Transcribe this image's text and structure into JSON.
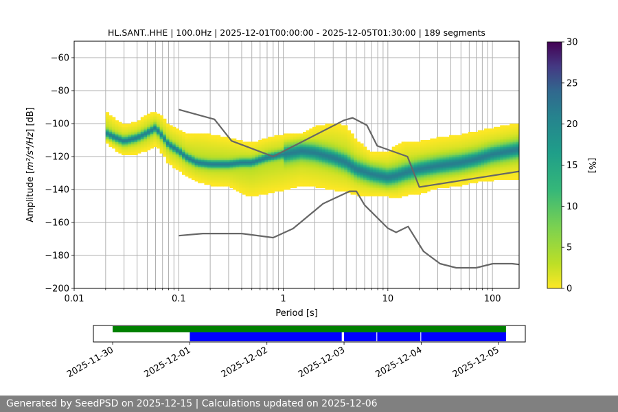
{
  "chart_data": {
    "type": "heatmap",
    "title": "HL.SANT..HHE | 100.0Hz | 2025-12-01T00:00:00 - 2025-12-05T01:30:00 | 189 segments",
    "xlabel": "Period [s]",
    "ylabel_prefix": "Amplitude [",
    "ylabel_math": "m²/s⁴/Hz",
    "ylabel_suffix": "] [dB]",
    "xscale": "log",
    "xlim": [
      0.01,
      180
    ],
    "ylim": [
      -200,
      -50
    ],
    "xticks": [
      {
        "value": 0.01,
        "label": "0.01"
      },
      {
        "value": 0.1,
        "label": "0.1"
      },
      {
        "value": 1,
        "label": "1"
      },
      {
        "value": 10,
        "label": "10"
      },
      {
        "value": 100,
        "label": "100"
      }
    ],
    "yticks": [
      {
        "value": -60,
        "label": "−60"
      },
      {
        "value": -80,
        "label": "−80"
      },
      {
        "value": -100,
        "label": "−100"
      },
      {
        "value": -120,
        "label": "−120"
      },
      {
        "value": -140,
        "label": "−140"
      },
      {
        "value": -160,
        "label": "−160"
      },
      {
        "value": -180,
        "label": "−180"
      },
      {
        "value": -200,
        "label": "−200"
      }
    ],
    "grid": true,
    "colorbar": {
      "label": "[%]",
      "min": 0,
      "max": 30,
      "ticks": [
        {
          "value": 0,
          "label": "0"
        },
        {
          "value": 5,
          "label": "5"
        },
        {
          "value": 10,
          "label": "10"
        },
        {
          "value": 15,
          "label": "15"
        },
        {
          "value": 20,
          "label": "20"
        },
        {
          "value": 25,
          "label": "25"
        },
        {
          "value": 30,
          "label": "30"
        }
      ],
      "colormap": "viridis_r"
    },
    "psd_band": {
      "period": [
        0.02,
        0.025,
        0.03,
        0.04,
        0.05,
        0.06,
        0.07,
        0.08,
        0.1,
        0.12,
        0.15,
        0.2,
        0.3,
        0.4,
        0.5,
        0.7,
        1,
        1.5,
        2,
        3,
        4,
        5,
        7,
        10,
        12,
        15,
        20,
        30,
        50,
        70,
        100,
        180
      ],
      "mode": [
        -106,
        -109,
        -111,
        -109,
        -106,
        -103,
        -108,
        -113,
        -117,
        -121,
        -124,
        -125,
        -125,
        -124,
        -124,
        -121,
        -119,
        -117,
        -118,
        -121,
        -124,
        -128,
        -131,
        -133,
        -132,
        -130,
        -128,
        -126,
        -124,
        -122,
        -119,
        -116
      ],
      "upper": [
        -94,
        -99,
        -102,
        -100,
        -96,
        -94,
        -97,
        -102,
        -105,
        -108,
        -107,
        -108,
        -110,
        -112,
        -113,
        -110,
        -108,
        -107,
        -103,
        -101,
        -103,
        -111,
        -119,
        -118,
        -115,
        -112,
        -112,
        -110,
        -108,
        -106,
        -104,
        -101
      ],
      "lower": [
        -111,
        -116,
        -119,
        -118,
        -116,
        -113,
        -118,
        -124,
        -128,
        -132,
        -135,
        -137,
        -138,
        -142,
        -144,
        -142,
        -140,
        -137,
        -138,
        -140,
        -141,
        -143,
        -144,
        -144,
        -145,
        -143,
        -142,
        -139,
        -137,
        -135,
        -134,
        -133
      ]
    },
    "high_noise_model": {
      "period": [
        0.1,
        0.22,
        0.32,
        0.8,
        3.8,
        4.6,
        6.3,
        7.9,
        15.4,
        20,
        180
      ],
      "db": [
        -91.5,
        -97.4,
        -110.5,
        -120,
        -98,
        -96.5,
        -101,
        -113.5,
        -120,
        -138.5,
        -129
      ]
    },
    "low_noise_model": {
      "period": [
        0.1,
        0.17,
        0.4,
        0.8,
        1.24,
        2.4,
        4.3,
        5,
        6,
        10,
        12,
        15.6,
        21.9,
        31.6,
        45,
        70,
        101,
        154,
        180
      ],
      "db": [
        -168,
        -166.7,
        -166.7,
        -169.2,
        -163.7,
        -148.6,
        -141.1,
        -141.1,
        -149.5,
        -163.5,
        -166,
        -162.4,
        -177.5,
        -185,
        -187.5,
        -187.5,
        -185,
        -185,
        -185.5
      ]
    },
    "availability": {
      "ticks": [
        {
          "date": "2025-11-30",
          "label": "2025-11-30"
        },
        {
          "date": "2025-12-01",
          "label": "2025-12-01"
        },
        {
          "date": "2025-12-02",
          "label": "2025-12-02"
        },
        {
          "date": "2025-12-03",
          "label": "2025-12-03"
        },
        {
          "date": "2025-12-04",
          "label": "2025-12-04"
        },
        {
          "date": "2025-12-05",
          "label": "2025-12-05"
        }
      ],
      "range_days": [
        -0.25,
        5.35
      ],
      "data_available": {
        "start_day": 0.0,
        "end_day": 5.1,
        "color": "#008000"
      },
      "psd_segments": [
        {
          "start_day": 1.0,
          "end_day": 2.97,
          "color": "#0000ff"
        },
        {
          "start_day": 3.0,
          "end_day": 3.42,
          "color": "#0000ff"
        },
        {
          "start_day": 3.43,
          "end_day": 3.99,
          "color": "#0000ff"
        },
        {
          "start_day": 4.0,
          "end_day": 5.1,
          "color": "#0000ff"
        }
      ]
    }
  },
  "footer": {
    "text": "Generated by SeedPSD on 2025-12-15 | Calculations updated on 2025-12-06"
  },
  "colors": {
    "model_line": "#666666",
    "grid": "#b0b0b0"
  }
}
